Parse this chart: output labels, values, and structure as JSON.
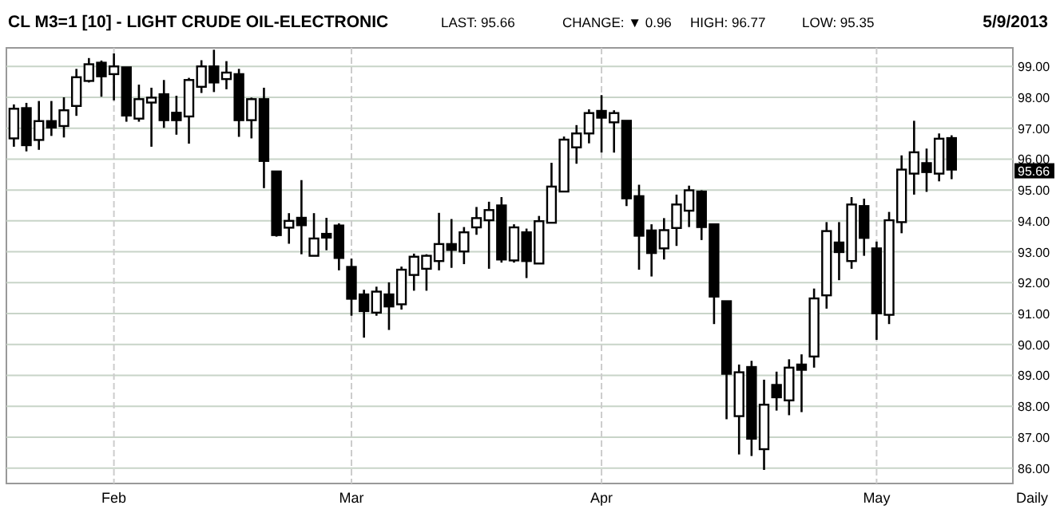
{
  "chart_data": {
    "type": "candlestick",
    "title": "CL M3=1 [10] - LIGHT CRUDE OIL-ELECTRONIC",
    "annotations": [
      "LAST: 95.66",
      "CHANGE: ▼ 0.96",
      "HIGH: 96.77",
      "LOW: 95.35",
      "5/9/2013",
      "Daily",
      "95.66"
    ],
    "categories": [
      null,
      null,
      null,
      null,
      null,
      null,
      null,
      null,
      "Feb",
      null,
      null,
      null,
      null,
      null,
      null,
      null,
      null,
      null,
      null,
      null,
      null,
      null,
      null,
      null,
      null,
      null,
      null,
      "Mar",
      null,
      null,
      null,
      null,
      null,
      null,
      null,
      null,
      null,
      null,
      null,
      null,
      null,
      null,
      null,
      null,
      null,
      null,
      null,
      "Apr",
      null,
      null,
      null,
      null,
      null,
      null,
      null,
      null,
      null,
      null,
      null,
      null,
      null,
      null,
      null,
      null,
      null,
      null,
      null,
      null,
      null,
      "May",
      null,
      null,
      null,
      null,
      null,
      null
    ],
    "color": "#000000",
    "ohlc": [
      [
        96.67,
        97.77,
        96.4,
        97.63
      ],
      [
        97.65,
        97.82,
        96.25,
        96.45
      ],
      [
        96.62,
        97.88,
        96.3,
        97.23
      ],
      [
        97.23,
        97.88,
        96.75,
        97.02
      ],
      [
        97.07,
        98.0,
        96.7,
        97.58
      ],
      [
        97.72,
        98.92,
        97.4,
        98.65
      ],
      [
        98.53,
        99.27,
        98.48,
        99.07
      ],
      [
        99.12,
        99.19,
        98.02,
        98.68
      ],
      [
        98.75,
        99.42,
        97.9,
        99.0
      ],
      [
        98.97,
        98.97,
        97.21,
        97.41
      ],
      [
        97.31,
        98.41,
        97.21,
        97.94
      ],
      [
        97.83,
        98.31,
        96.4,
        97.99
      ],
      [
        98.1,
        98.56,
        97.01,
        97.26
      ],
      [
        97.5,
        98.05,
        96.79,
        97.26
      ],
      [
        97.38,
        98.63,
        96.5,
        98.56
      ],
      [
        98.34,
        99.2,
        98.14,
        99.0
      ],
      [
        99.0,
        99.54,
        98.17,
        98.48
      ],
      [
        98.59,
        99.17,
        98.26,
        98.8
      ],
      [
        98.75,
        98.92,
        96.72,
        97.26
      ],
      [
        97.26,
        97.99,
        96.67,
        97.94
      ],
      [
        97.94,
        98.31,
        95.06,
        95.94
      ],
      [
        95.6,
        95.6,
        93.49,
        93.54
      ],
      [
        93.78,
        94.25,
        93.26,
        94.0
      ],
      [
        94.1,
        95.32,
        92.92,
        93.86
      ],
      [
        92.87,
        94.25,
        92.87,
        93.43
      ],
      [
        93.58,
        94.1,
        93.05,
        93.46
      ],
      [
        93.85,
        93.92,
        92.4,
        92.8
      ],
      [
        92.51,
        92.78,
        90.93,
        91.48
      ],
      [
        91.62,
        91.77,
        90.22,
        91.08
      ],
      [
        91.03,
        91.87,
        90.93,
        91.71
      ],
      [
        91.62,
        92.01,
        90.47,
        91.23
      ],
      [
        91.3,
        92.52,
        91.13,
        92.42
      ],
      [
        92.25,
        92.94,
        91.74,
        92.84
      ],
      [
        92.45,
        92.92,
        91.74,
        92.87
      ],
      [
        92.7,
        94.26,
        92.4,
        93.25
      ],
      [
        93.25,
        94.06,
        92.48,
        93.06
      ],
      [
        93.01,
        93.8,
        92.6,
        93.63
      ],
      [
        93.79,
        94.45,
        93.55,
        94.09
      ],
      [
        94.02,
        94.62,
        92.45,
        94.35
      ],
      [
        94.5,
        94.77,
        92.65,
        92.75
      ],
      [
        92.72,
        93.89,
        92.65,
        93.79
      ],
      [
        93.63,
        93.75,
        92.15,
        92.7
      ],
      [
        92.62,
        94.16,
        92.62,
        93.99
      ],
      [
        93.94,
        95.88,
        93.94,
        95.11
      ],
      [
        94.95,
        96.73,
        94.95,
        96.63
      ],
      [
        96.38,
        97.1,
        95.85,
        96.83
      ],
      [
        96.83,
        97.61,
        96.51,
        97.49
      ],
      [
        97.56,
        98.07,
        96.21,
        97.34
      ],
      [
        97.19,
        97.58,
        96.21,
        97.49
      ],
      [
        97.24,
        97.24,
        94.48,
        94.73
      ],
      [
        94.8,
        95.17,
        92.42,
        93.52
      ],
      [
        93.69,
        93.89,
        92.2,
        92.96
      ],
      [
        93.11,
        94.09,
        92.75,
        93.7
      ],
      [
        93.77,
        94.85,
        93.19,
        94.53
      ],
      [
        94.33,
        95.14,
        93.8,
        94.99
      ],
      [
        94.95,
        94.99,
        93.38,
        93.8
      ],
      [
        93.89,
        93.89,
        90.66,
        91.55
      ],
      [
        91.4,
        91.4,
        87.58,
        89.05
      ],
      [
        87.68,
        89.35,
        86.44,
        89.1
      ],
      [
        89.27,
        89.47,
        86.39,
        86.95
      ],
      [
        86.61,
        88.86,
        85.94,
        88.05
      ],
      [
        88.69,
        89.12,
        87.86,
        88.29
      ],
      [
        88.19,
        89.52,
        87.71,
        89.25
      ],
      [
        89.35,
        89.68,
        87.81,
        89.18
      ],
      [
        89.61,
        91.81,
        89.25,
        91.49
      ],
      [
        91.59,
        93.96,
        91.16,
        93.67
      ],
      [
        93.3,
        93.96,
        92.08,
        92.99
      ],
      [
        92.7,
        94.77,
        92.45,
        94.53
      ],
      [
        94.48,
        94.72,
        92.87,
        93.45
      ],
      [
        93.11,
        93.33,
        90.15,
        91.01
      ],
      [
        90.96,
        94.29,
        90.66,
        94.02
      ],
      [
        93.96,
        96.12,
        93.6,
        95.66
      ],
      [
        95.53,
        97.24,
        94.85,
        96.22
      ],
      [
        95.87,
        96.34,
        94.94,
        95.58
      ],
      [
        95.53,
        96.83,
        95.28,
        96.66
      ],
      [
        96.68,
        96.77,
        95.35,
        95.66
      ]
    ],
    "ylim": [
      85.5,
      99.6
    ],
    "yticks": [
      {
        "value": 86,
        "label": "86.00"
      },
      {
        "value": 87,
        "label": "87.00"
      },
      {
        "value": 88,
        "label": "88.00"
      },
      {
        "value": 89,
        "label": "89.00"
      },
      {
        "value": 90,
        "label": "90.00"
      },
      {
        "value": 91,
        "label": "91.00"
      },
      {
        "value": 92,
        "label": "92.00"
      },
      {
        "value": 93,
        "label": "93.00"
      },
      {
        "value": 94,
        "label": "94.00"
      },
      {
        "value": 95,
        "label": "95.00"
      },
      {
        "value": 96,
        "label": "96.00"
      },
      {
        "value": 97,
        "label": "97.00"
      },
      {
        "value": 98,
        "label": "98.00"
      },
      {
        "value": 99,
        "label": "99.00"
      }
    ],
    "grid": true
  }
}
